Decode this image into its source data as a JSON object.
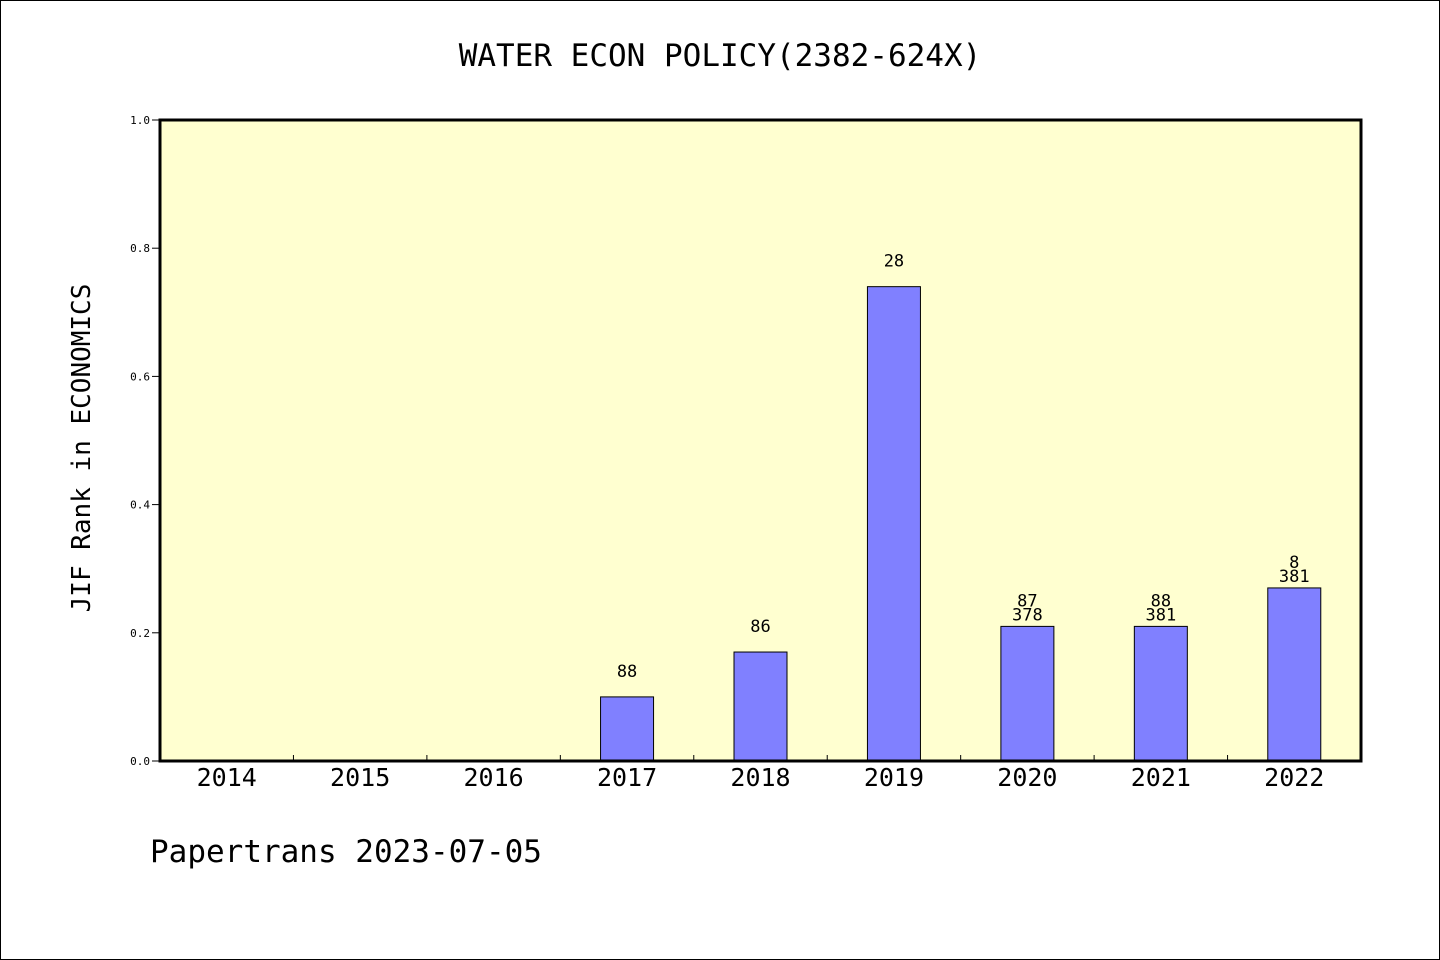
{
  "chart_data": {
    "type": "bar",
    "title": "WATER ECON POLICY(2382-624X)",
    "xlabel": "",
    "ylabel": "JIF Rank in ECONOMICS",
    "ylim": [
      0,
      1.0
    ],
    "yticks": [
      "0.0",
      "0.2",
      "0.4",
      "0.6",
      "0.8",
      "1.0"
    ],
    "ytick_values": [
      0,
      0.2,
      0.4,
      0.6,
      0.8,
      1.0
    ],
    "categories": [
      "2014",
      "2015",
      "2016",
      "2017",
      "2018",
      "2019",
      "2020",
      "2021",
      "2022"
    ],
    "values": [
      null,
      null,
      null,
      0.1,
      0.17,
      0.74,
      0.21,
      0.21,
      0.27
    ],
    "bar_labels": [
      [],
      [],
      [],
      [
        "88"
      ],
      [
        "86"
      ],
      [
        "28"
      ],
      [
        "87",
        "378"
      ],
      [
        "88",
        "381"
      ],
      [
        "8",
        "381"
      ]
    ],
    "bar_color": "#8080ff",
    "plot_background": "#ffffd0",
    "grid": false,
    "legend": "none"
  },
  "footer": {
    "text": "Papertrans 2023-07-05"
  }
}
